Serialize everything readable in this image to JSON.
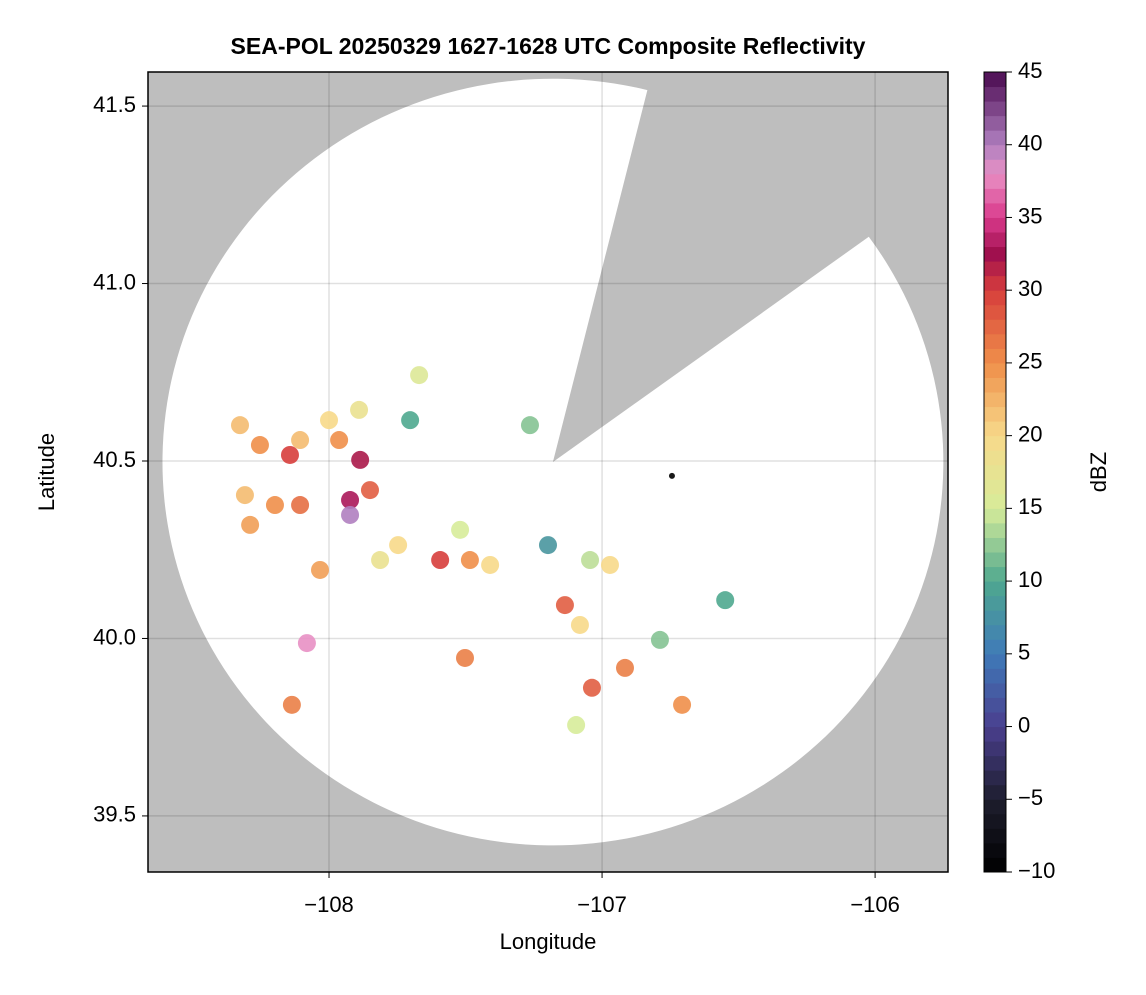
{
  "chart_data": {
    "type": "scatter",
    "title": "SEA-POL 20250329 1627-1628 UTC Composite Reflectivity",
    "xlabel": "Longitude",
    "ylabel": "Latitude",
    "colorbar_label": "dBZ",
    "xlim": [
      -108.663,
      -105.733
    ],
    "ylim": [
      39.342,
      41.596
    ],
    "xticks": [
      {
        "value": -108,
        "label": "−108"
      },
      {
        "value": -107,
        "label": "−107"
      },
      {
        "value": -106,
        "label": "−106"
      }
    ],
    "yticks": [
      {
        "value": 39.5,
        "label": "39.5"
      },
      {
        "value": 40.0,
        "label": "40.0"
      },
      {
        "value": 40.5,
        "label": "40.5"
      },
      {
        "value": 41.0,
        "label": "41.0"
      },
      {
        "value": 41.5,
        "label": "41.5"
      }
    ],
    "clim": [
      -10,
      45
    ],
    "cticks": [
      {
        "value": -10,
        "label": "−10"
      },
      {
        "value": -5,
        "label": "−5"
      },
      0,
      5,
      10,
      15,
      20,
      25,
      30,
      35,
      40,
      45
    ],
    "grid": true,
    "background_color": "#bebebe",
    "coverage": {
      "center": [
        -107.18,
        40.497
      ],
      "radius": [
        1.43,
        1.08
      ],
      "blanked_azimuths": [
        14,
        54
      ]
    },
    "colormap": [
      [
        -10,
        "#000000"
      ],
      [
        -5,
        "#1e1e2e"
      ],
      [
        0,
        "#4a3f8f"
      ],
      [
        5,
        "#3f7ab8"
      ],
      [
        10,
        "#4fa88f"
      ],
      [
        15,
        "#d7ec9a"
      ],
      [
        20,
        "#f7d98a"
      ],
      [
        25,
        "#ef8f4a"
      ],
      [
        30,
        "#d73e3c"
      ],
      [
        32.5,
        "#a0104e"
      ],
      [
        35,
        "#d93a8c"
      ],
      [
        38,
        "#e890c4"
      ],
      [
        40,
        "#b080c0"
      ],
      [
        45,
        "#4a0a50"
      ]
    ],
    "x": [
      -108.326,
      -108.253,
      -108.106,
      -108.143,
      -107.963,
      -108.0,
      -107.89,
      -107.886,
      -107.923,
      -107.923,
      -107.85,
      -108.106,
      -108.198,
      -108.308,
      -108.289,
      -108.033,
      -107.813,
      -107.593,
      -107.484,
      -107.41,
      -107.52,
      -107.703,
      -107.67,
      -107.264,
      -107.198,
      -107.136,
      -107.081,
      -107.044,
      -106.971,
      -108.081,
      -108.136,
      -107.502,
      -107.037,
      -106.916,
      -106.707,
      -107.095,
      -106.744,
      -106.788,
      -106.549,
      -107.747
    ],
    "y": [
      40.601,
      40.545,
      40.559,
      40.517,
      40.559,
      40.615,
      40.644,
      40.503,
      40.39,
      40.348,
      40.418,
      40.376,
      40.376,
      40.404,
      40.32,
      40.193,
      40.221,
      40.221,
      40.221,
      40.207,
      40.306,
      40.615,
      40.742,
      40.601,
      40.263,
      40.094,
      40.038,
      40.221,
      40.207,
      39.987,
      39.813,
      39.945,
      39.861,
      39.917,
      39.813,
      39.756,
      40.458,
      39.996,
      40.108,
      40.263
    ],
    "values": [
      22,
      25,
      22,
      30,
      25,
      20,
      18,
      32,
      33,
      40,
      28,
      27,
      25,
      22,
      24,
      24,
      18,
      30,
      25,
      20,
      15,
      10,
      16,
      12,
      8,
      28,
      20,
      14,
      20,
      38,
      26,
      26,
      28,
      26,
      25,
      15,
      -10,
      12,
      10,
      20
    ]
  }
}
